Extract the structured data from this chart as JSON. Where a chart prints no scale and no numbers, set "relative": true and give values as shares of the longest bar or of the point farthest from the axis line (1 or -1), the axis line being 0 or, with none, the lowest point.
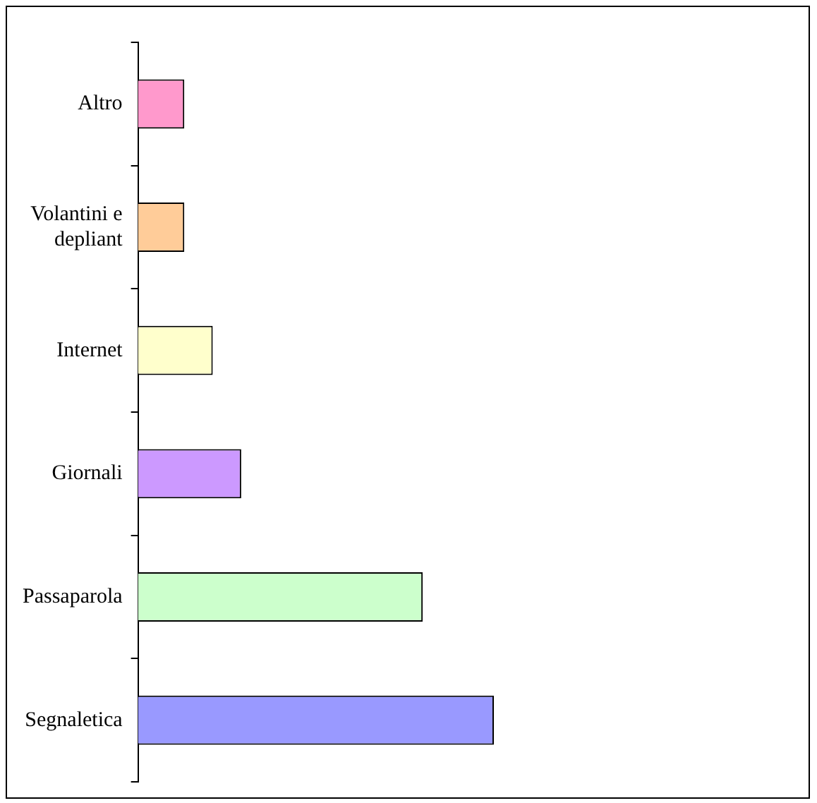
{
  "chart_data": {
    "type": "bar",
    "orientation": "horizontal",
    "relative": true,
    "categories": [
      "Altro",
      "Volantini e depliant",
      "Internet",
      "Giornali",
      "Passaparola",
      "Segnaletica"
    ],
    "values": [
      0.13,
      0.13,
      0.21,
      0.29,
      0.8,
      1
    ],
    "colors": [
      "#ff99cc",
      "#ffcc99",
      "#ffffcc",
      "#cc99ff",
      "#ccffcc",
      "#9999ff"
    ],
    "grid": false,
    "legend": false
  }
}
